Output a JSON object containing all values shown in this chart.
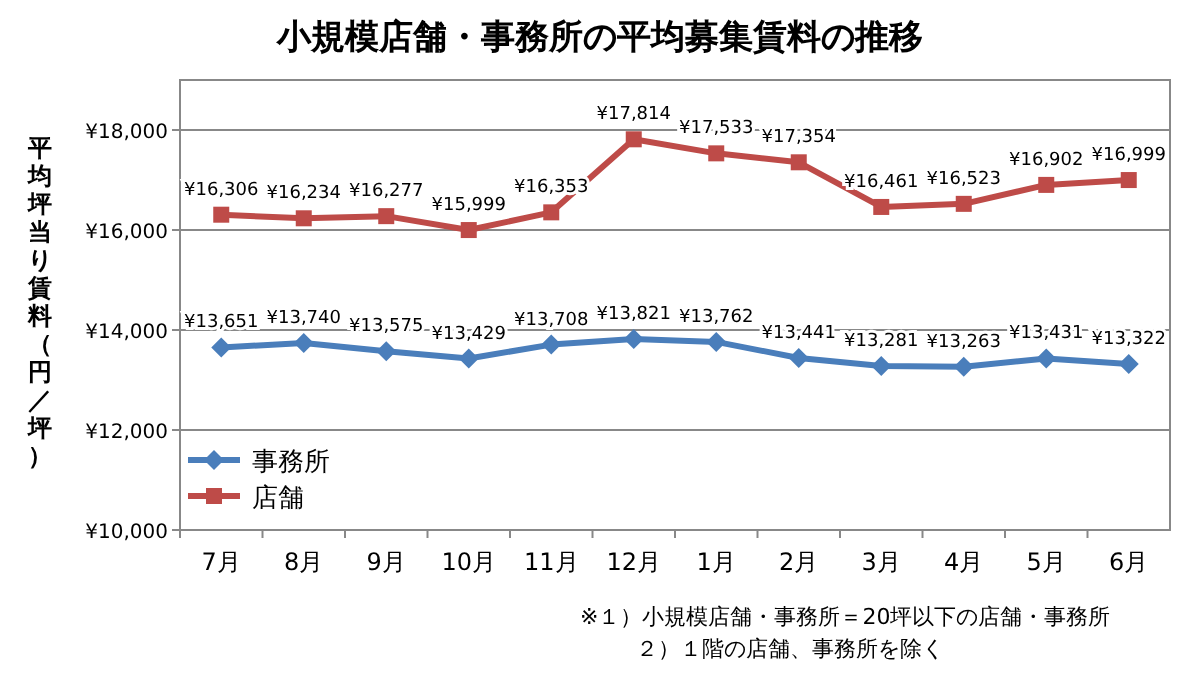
{
  "chart_data": {
    "type": "line",
    "title": "小規模店舗・事務所の平均募集賃料の推移",
    "ylabel": "平均坪当り賃料（円／坪）",
    "categories": [
      "7月",
      "8月",
      "9月",
      "10月",
      "11月",
      "12月",
      "1月",
      "2月",
      "3月",
      "4月",
      "5月",
      "6月"
    ],
    "series": [
      {
        "name": "事務所",
        "color": "#4a7ebb",
        "marker": "diamond",
        "values": [
          13651,
          13740,
          13575,
          13429,
          13708,
          13821,
          13762,
          13441,
          13281,
          13263,
          13431,
          13322
        ],
        "value_labels": [
          "¥13,651",
          "¥13,740",
          "¥13,575",
          "¥13,429",
          "¥13,708",
          "¥13,821",
          "¥13,762",
          "¥13,441",
          "¥13,281",
          "¥13,263",
          "¥13,431",
          "¥13,322"
        ]
      },
      {
        "name": "店舗",
        "color": "#be4b48",
        "marker": "square",
        "values": [
          16306,
          16234,
          16277,
          15999,
          16353,
          17814,
          17533,
          17354,
          16461,
          16523,
          16902,
          16999
        ],
        "value_labels": [
          "¥16,306",
          "¥16,234",
          "¥16,277",
          "¥15,999",
          "¥16,353",
          "¥17,814",
          "¥17,533",
          "¥17,354",
          "¥16,461",
          "¥16,523",
          "¥16,902",
          "¥16,999"
        ]
      }
    ],
    "ylim": [
      10000,
      19000
    ],
    "yticks": [
      {
        "value": 10000,
        "label": "¥10,000"
      },
      {
        "value": 12000,
        "label": "¥12,000"
      },
      {
        "value": 14000,
        "label": "¥14,000"
      },
      {
        "value": 16000,
        "label": "¥16,000"
      },
      {
        "value": 18000,
        "label": "¥18,000"
      }
    ],
    "grid": "y",
    "legend": "bottom left",
    "annotations": [
      "※１）小規模店舗・事務所＝20坪以下の店舗・事務所",
      "２）１階の店舗、事務所を除く"
    ]
  }
}
